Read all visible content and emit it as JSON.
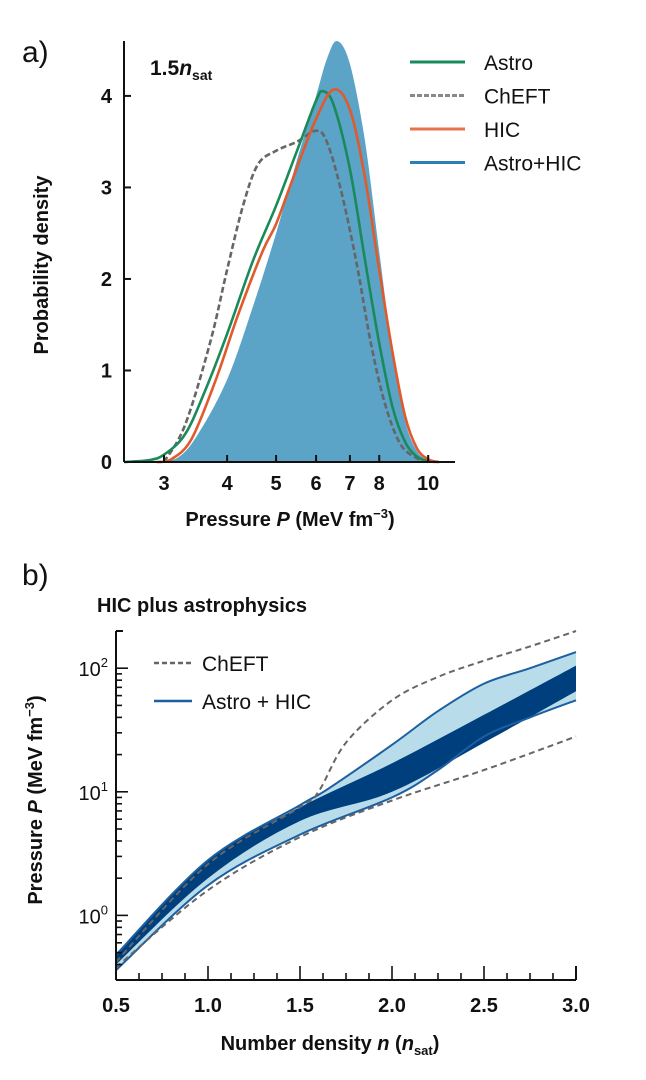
{
  "chart_data": [
    {
      "panel_label": "a)",
      "type": "line",
      "annotation": {
        "main": "1.5",
        "italic": "n",
        "sub": "sat"
      },
      "xlabel": {
        "text": "Pressure ",
        "italic": "P",
        "unit": " (MeV fm",
        "sup": "−3",
        "close": ")"
      },
      "ylabel": "Probability density",
      "xscale": "log",
      "xlim": [
        2.5,
        11.3
      ],
      "ylim": [
        0,
        4.6
      ],
      "xticks": [
        3,
        4,
        5,
        6,
        7,
        8,
        10
      ],
      "xtick_labels": [
        "3",
        "4",
        "5",
        "6",
        "7",
        "8",
        "10"
      ],
      "yticks": [
        0,
        1,
        2,
        3,
        4
      ],
      "ytick_labels": [
        "0",
        "1",
        "2",
        "3",
        "4"
      ],
      "legend_position": "top-right",
      "series": [
        {
          "name": "Astro+HIC",
          "style": "fill",
          "color": "#5ba3c7",
          "x": [
            2.9,
            3.2,
            3.5,
            4,
            4.5,
            5,
            5.5,
            6,
            6.3,
            6.6,
            7,
            7.5,
            8,
            8.5,
            9,
            9.5,
            10,
            10.5
          ],
          "y": [
            0,
            0.05,
            0.3,
            0.9,
            1.7,
            2.5,
            3.3,
            4.0,
            4.4,
            4.62,
            4.35,
            3.5,
            2.3,
            1.2,
            0.45,
            0.12,
            0.02,
            0
          ]
        },
        {
          "name": "ChEFT",
          "style": "dashed",
          "color": "#666666",
          "x": [
            3,
            3.3,
            3.7,
            4,
            4.3,
            4.6,
            5,
            5.5,
            6,
            6.3,
            6.7,
            7.2,
            7.7,
            8.2,
            8.8,
            9.5,
            10
          ],
          "y": [
            0,
            0.4,
            1.3,
            2.1,
            2.8,
            3.25,
            3.4,
            3.5,
            3.62,
            3.5,
            3.0,
            2.2,
            1.3,
            0.65,
            0.2,
            0.04,
            0
          ]
        },
        {
          "name": "Astro",
          "style": "solid",
          "color": "#1a8a5a",
          "x": [
            2.5,
            2.8,
            3,
            3.3,
            3.6,
            4,
            4.5,
            5,
            5.5,
            6,
            6.2,
            6.5,
            7,
            7.5,
            8,
            8.5,
            9,
            9.5,
            10,
            10.5
          ],
          "y": [
            0,
            0.02,
            0.08,
            0.3,
            0.75,
            1.4,
            2.2,
            2.8,
            3.4,
            3.95,
            4.05,
            3.9,
            3.2,
            2.2,
            1.3,
            0.6,
            0.22,
            0.06,
            0.01,
            0
          ]
        },
        {
          "name": "HIC",
          "style": "solid",
          "color": "#e05a2b",
          "x": [
            2.9,
            3.1,
            3.4,
            3.8,
            4.2,
            4.7,
            5,
            5.4,
            6,
            6.5,
            7,
            7.5,
            8,
            8.5,
            9,
            9.5,
            10,
            10.5
          ],
          "y": [
            0,
            0.03,
            0.25,
            0.9,
            1.6,
            2.3,
            2.6,
            3.1,
            3.75,
            4.07,
            3.85,
            3.1,
            2.1,
            1.2,
            0.5,
            0.15,
            0.03,
            0
          ]
        }
      ],
      "legend": [
        {
          "label": "Astro",
          "color": "#1a8a5a",
          "style": "solid"
        },
        {
          "label": "ChEFT",
          "color": "#888888",
          "style": "dashed"
        },
        {
          "label": "HIC",
          "color": "#e8734a",
          "style": "solid"
        },
        {
          "label": "Astro+HIC",
          "color": "#2a7fb5",
          "style": "solid"
        }
      ]
    },
    {
      "panel_label": "b)",
      "type": "area",
      "title": "HIC plus astrophysics",
      "xlabel": {
        "text": "Number density ",
        "italic": "n",
        "unit": " (",
        "italic2": "n",
        "sub": "sat",
        "close": ")"
      },
      "ylabel": {
        "text": "Pressure ",
        "italic": "P",
        "unit": " (MeV fm",
        "sup": "−3",
        "close": ")"
      },
      "yscale": "log",
      "xlim": [
        0.5,
        3.0
      ],
      "ylim": [
        0.3,
        200
      ],
      "xticks": [
        0.5,
        1.0,
        1.5,
        2.0,
        2.5,
        3.0
      ],
      "xtick_labels": [
        "0.5",
        "1.0",
        "1.5",
        "2.0",
        "2.5",
        "3.0"
      ],
      "yticks": [
        1,
        10,
        100
      ],
      "ytick_labels": [
        {
          "base": "10",
          "exp": "0"
        },
        {
          "base": "10",
          "exp": "1"
        },
        {
          "base": "10",
          "exp": "2"
        }
      ],
      "legend_position": "top-left",
      "series": [
        {
          "name": "Astro + HIC outer band",
          "color": "#b8dcea",
          "edge": "#1d5fa0",
          "x_upper": [
            0.5,
            1.0,
            1.5,
            1.65,
            2.0,
            2.25,
            2.5,
            2.75,
            3.0
          ],
          "y_upper": [
            0.48,
            2.8,
            7.8,
            10.5,
            24,
            45,
            75,
            100,
            135
          ],
          "x_lower": [
            0.5,
            1.0,
            1.5,
            2.0,
            2.25,
            2.5,
            2.75,
            3.0
          ],
          "y_lower": [
            0.36,
            1.75,
            4.5,
            9,
            15,
            28,
            40,
            55
          ]
        },
        {
          "name": "Astro + HIC inner band",
          "color": "#003f7d",
          "x_upper": [
            0.5,
            1.0,
            1.5,
            2.0,
            2.5,
            3.0
          ],
          "y_upper": [
            0.48,
            2.8,
            7.5,
            17,
            42,
            105
          ],
          "x_lower": [
            0.5,
            1.0,
            1.5,
            2.0,
            2.5,
            3.0
          ],
          "y_lower": [
            0.4,
            2.0,
            5.8,
            10,
            25,
            65
          ]
        },
        {
          "name": "ChEFT",
          "color": "#666666",
          "style": "dashed",
          "x_upper": [
            0.5,
            1.0,
            1.5,
            1.6,
            1.75,
            2.0,
            2.25,
            2.5,
            2.75,
            3.0
          ],
          "y_upper": [
            0.42,
            2.6,
            7.5,
            10,
            25,
            55,
            85,
            115,
            150,
            200
          ],
          "x_lower": [
            0.5,
            1.0,
            1.5,
            2.0,
            2.5,
            3.0
          ],
          "y_lower": [
            0.38,
            1.6,
            4.3,
            8.5,
            15,
            28
          ]
        }
      ],
      "legend": [
        {
          "label": "ChEFT",
          "color": "#666666",
          "style": "dashed"
        },
        {
          "label": "Astro + HIC",
          "color": "#1d5fa0",
          "style": "solid"
        }
      ]
    }
  ]
}
